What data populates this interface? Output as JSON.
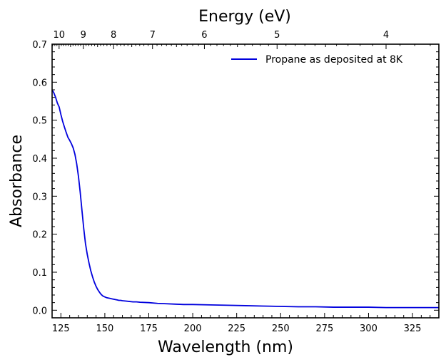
{
  "chart_data": {
    "type": "line",
    "xlabel": "Wavelength (nm)",
    "ylabel": "Absorbance",
    "top_xlabel": "Energy (eV)",
    "xlim": [
      120,
      340
    ],
    "ylim": [
      -0.02,
      0.7
    ],
    "xticks": [
      125,
      150,
      175,
      200,
      225,
      250,
      275,
      300,
      325
    ],
    "yticks": [
      0.0,
      0.1,
      0.2,
      0.3,
      0.4,
      0.5,
      0.6,
      0.7
    ],
    "top_ticks_ev": [
      10,
      9,
      8,
      7,
      6,
      5,
      4
    ],
    "grid": false,
    "legend_position": "top-right",
    "series": [
      {
        "name": "Propane as deposited at 8K",
        "color": "#0000dd",
        "x": [
          120,
          121,
          122,
          123,
          124,
          125,
          126,
          127,
          128,
          129,
          130,
          131,
          132,
          133,
          134,
          135,
          136,
          137,
          138,
          139,
          140,
          141,
          142,
          143,
          144,
          145,
          146,
          147,
          148,
          149,
          150,
          151,
          152,
          153,
          154,
          155,
          156,
          157,
          158,
          159,
          160,
          162,
          164,
          166,
          168,
          170,
          175,
          180,
          185,
          190,
          195,
          200,
          210,
          220,
          230,
          240,
          250,
          260,
          270,
          280,
          290,
          300,
          310,
          320,
          330,
          340
        ],
        "y": [
          0.58,
          0.572,
          0.56,
          0.545,
          0.535,
          0.515,
          0.497,
          0.482,
          0.468,
          0.455,
          0.447,
          0.438,
          0.427,
          0.41,
          0.385,
          0.352,
          0.31,
          0.262,
          0.215,
          0.175,
          0.147,
          0.124,
          0.104,
          0.088,
          0.074,
          0.063,
          0.054,
          0.047,
          0.041,
          0.037,
          0.035,
          0.033,
          0.032,
          0.031,
          0.03,
          0.029,
          0.028,
          0.027,
          0.026,
          0.026,
          0.025,
          0.024,
          0.023,
          0.022,
          0.022,
          0.021,
          0.02,
          0.018,
          0.017,
          0.016,
          0.015,
          0.015,
          0.014,
          0.013,
          0.012,
          0.011,
          0.01,
          0.009,
          0.009,
          0.008,
          0.008,
          0.008,
          0.007,
          0.007,
          0.007,
          0.007
        ]
      }
    ]
  }
}
